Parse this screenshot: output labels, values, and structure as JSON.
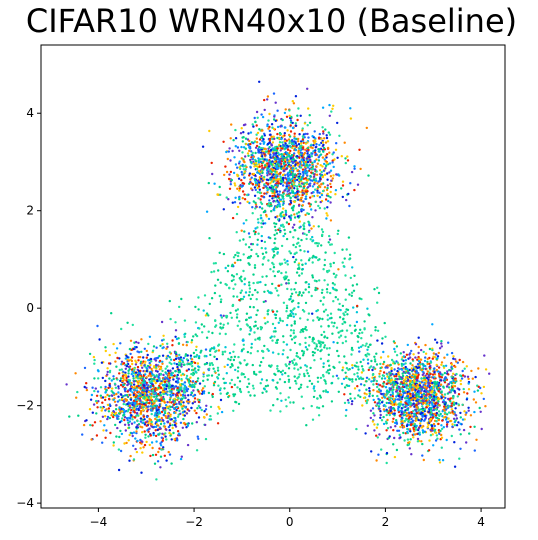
{
  "chart_data": {
    "type": "scatter",
    "title": "CIFAR10 WRN40x10 (Baseline)",
    "xlabel": "",
    "ylabel": "",
    "xlim": [
      -5.2,
      4.5
    ],
    "ylim": [
      -4.1,
      5.4
    ],
    "xticks": [
      -4,
      -2,
      0,
      2,
      4
    ],
    "yticks": [
      -4,
      -2,
      0,
      2,
      4
    ],
    "grid": false,
    "legend": "none",
    "marker_size": 2,
    "clusters": [
      {
        "center": [
          -0.1,
          2.9
        ],
        "spread": [
          0.55,
          0.5
        ],
        "count": 1500
      },
      {
        "center": [
          -2.9,
          -1.8
        ],
        "spread": [
          0.55,
          0.5
        ],
        "count": 1500
      },
      {
        "center": [
          2.7,
          -1.8
        ],
        "spread": [
          0.5,
          0.45
        ],
        "count": 1500
      }
    ],
    "bridge_points": 1200,
    "colors": [
      "#0022dd",
      "#1a66ff",
      "#00a8ff",
      "#00d088",
      "#22e0a0",
      "#ffcc00",
      "#ff8800",
      "#ee2200",
      "#6633cc",
      "#00c8d8"
    ]
  }
}
